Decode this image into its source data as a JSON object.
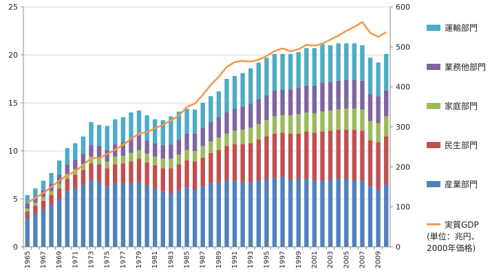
{
  "chart_data": {
    "type": "bar",
    "stacked": true,
    "x": [
      1965,
      1966,
      1967,
      1968,
      1969,
      1970,
      1971,
      1972,
      1973,
      1974,
      1975,
      1976,
      1977,
      1978,
      1979,
      1980,
      1981,
      1982,
      1983,
      1984,
      1985,
      1986,
      1987,
      1988,
      1989,
      1990,
      1991,
      1992,
      1993,
      1994,
      1995,
      1996,
      1997,
      1998,
      1999,
      2000,
      2001,
      2002,
      2003,
      2004,
      2005,
      2006,
      2007,
      2008,
      2009,
      2010
    ],
    "x_tick_labels": [
      "1965",
      "1967",
      "1969",
      "1971",
      "1973",
      "1975",
      "1977",
      "1979",
      "1981",
      "1983",
      "1985",
      "1987",
      "1989",
      "1991",
      "1993",
      "1995",
      "1997",
      "1999",
      "2001",
      "2003",
      "2005",
      "2007",
      "2009"
    ],
    "y_left": {
      "ylim": [
        0,
        25
      ],
      "ticks": [
        "0",
        "5",
        "10",
        "15",
        "20",
        "25"
      ]
    },
    "y_right": {
      "ylim": [
        0,
        600
      ],
      "ticks": [
        "0",
        "100",
        "200",
        "300",
        "400",
        "500",
        "600"
      ]
    },
    "series": [
      {
        "name": "産業部門",
        "color": "#4F81BD",
        "values": [
          3.0,
          3.5,
          3.9,
          4.4,
          5.0,
          5.8,
          6.1,
          6.5,
          7.0,
          6.8,
          6.3,
          6.6,
          6.6,
          6.6,
          6.8,
          6.4,
          6.1,
          5.8,
          5.6,
          5.9,
          6.2,
          6.0,
          6.3,
          6.6,
          6.8,
          6.9,
          6.9,
          6.8,
          6.7,
          6.9,
          7.0,
          7.2,
          7.3,
          7.0,
          7.0,
          7.1,
          6.9,
          6.9,
          7.0,
          7.1,
          7.0,
          7.0,
          6.9,
          6.3,
          6.0,
          6.5
        ]
      },
      {
        "name": "民生部門",
        "color": "#C0504D",
        "values": [
          0.7,
          0.8,
          0.9,
          1.0,
          1.1,
          1.3,
          1.4,
          1.5,
          1.7,
          1.8,
          1.9,
          2.0,
          2.1,
          2.3,
          2.4,
          2.4,
          2.4,
          2.4,
          2.6,
          2.7,
          2.8,
          2.9,
          3.0,
          3.2,
          3.3,
          3.6,
          3.8,
          3.9,
          4.1,
          4.3,
          4.5,
          4.6,
          4.6,
          4.8,
          4.8,
          4.9,
          5.0,
          5.1,
          5.1,
          5.1,
          5.2,
          5.2,
          5.2,
          4.8,
          4.9,
          5.0
        ]
      },
      {
        "name": "家庭部門",
        "color": "#9BBB59",
        "values": [
          0.3,
          0.3,
          0.4,
          0.4,
          0.5,
          0.5,
          0.6,
          0.6,
          0.7,
          0.7,
          0.7,
          0.8,
          0.8,
          0.9,
          0.9,
          0.9,
          0.9,
          1.0,
          1.0,
          1.0,
          1.1,
          1.1,
          1.2,
          1.2,
          1.3,
          1.3,
          1.4,
          1.5,
          1.6,
          1.6,
          1.7,
          1.8,
          1.8,
          1.9,
          2.0,
          2.0,
          2.0,
          2.1,
          2.1,
          2.1,
          2.2,
          2.2,
          2.2,
          2.0,
          2.0,
          2.1
        ]
      },
      {
        "name": "業務他部門",
        "color": "#8064A2",
        "values": [
          0.5,
          0.6,
          0.7,
          0.8,
          0.9,
          1.0,
          1.0,
          1.1,
          1.2,
          1.2,
          1.2,
          1.3,
          1.4,
          1.5,
          1.5,
          1.4,
          1.4,
          1.4,
          1.5,
          1.6,
          1.7,
          1.8,
          1.9,
          2.0,
          2.1,
          2.2,
          2.3,
          2.4,
          2.5,
          2.6,
          2.6,
          2.7,
          2.7,
          2.7,
          2.8,
          2.8,
          2.9,
          3.0,
          3.0,
          3.0,
          3.0,
          3.0,
          3.0,
          2.8,
          2.8,
          2.7
        ]
      },
      {
        "name": "運輸部門",
        "color": "#4BACC6",
        "values": [
          0.9,
          0.9,
          1.0,
          1.1,
          1.5,
          1.7,
          1.7,
          1.8,
          2.4,
          2.2,
          2.5,
          2.6,
          2.6,
          2.7,
          2.6,
          2.6,
          2.5,
          2.6,
          2.9,
          2.9,
          2.6,
          2.5,
          2.6,
          2.7,
          2.7,
          3.5,
          3.4,
          3.5,
          3.7,
          3.8,
          3.9,
          3.8,
          3.7,
          3.7,
          3.7,
          3.9,
          3.9,
          4.0,
          3.8,
          3.9,
          3.8,
          3.8,
          3.7,
          3.8,
          3.5,
          3.8
        ]
      }
    ],
    "line": {
      "name": "実質GDP",
      "name_lines": [
        "実質GDP",
        "(単位：兆円、",
        "2000年価格)"
      ],
      "color": "#F79646",
      "axis": "right",
      "values": [
        110,
        122,
        135,
        150,
        165,
        180,
        188,
        205,
        222,
        222,
        232,
        243,
        255,
        270,
        283,
        287,
        296,
        305,
        316,
        328,
        350,
        358,
        380,
        405,
        425,
        450,
        462,
        465,
        463,
        468,
        477,
        490,
        496,
        489,
        494,
        505,
        503,
        508,
        518,
        528,
        540,
        550,
        562,
        535,
        525,
        537
      ]
    },
    "legend_placement": "right"
  }
}
